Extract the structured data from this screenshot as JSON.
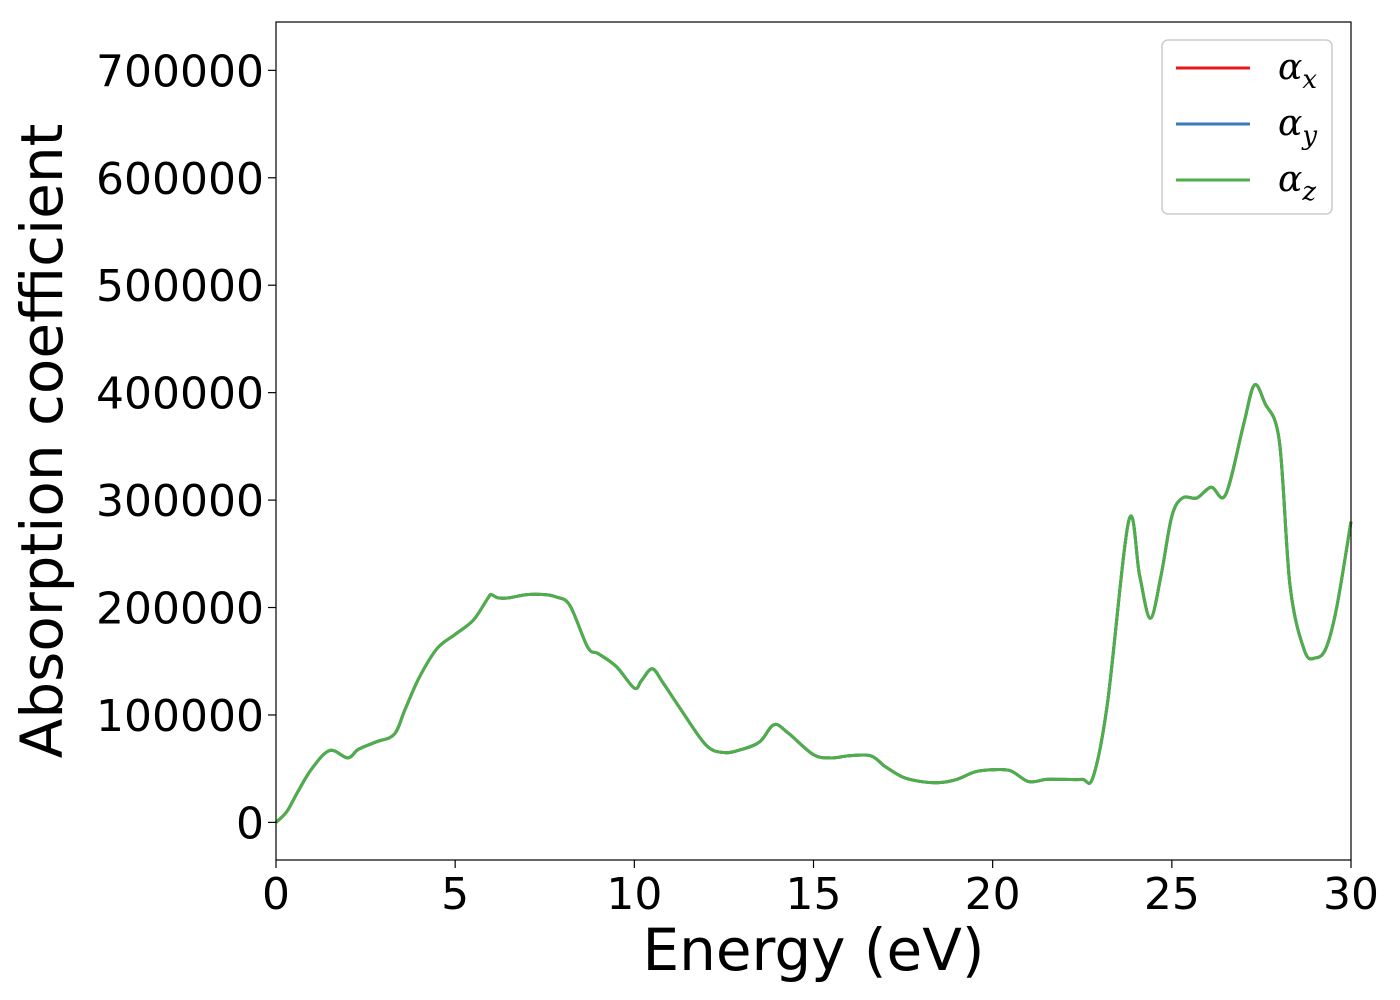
{
  "chart_data": {
    "type": "line",
    "title": "",
    "xlabel": "Energy (eV)",
    "ylabel": "Absorption coefficient",
    "xlim": [
      0,
      30
    ],
    "ylim": [
      -35000,
      745000
    ],
    "xticks": [
      0,
      5,
      10,
      15,
      20,
      25,
      30
    ],
    "yticks": [
      0,
      100000,
      200000,
      300000,
      400000,
      500000,
      600000,
      700000
    ],
    "xtick_labels": [
      "0",
      "5",
      "10",
      "15",
      "20",
      "25",
      "30"
    ],
    "ytick_labels": [
      "0",
      "100000",
      "200000",
      "300000",
      "400000",
      "500000",
      "600000",
      "700000"
    ],
    "grid": false,
    "legend": {
      "placement": "top-right",
      "entries": [
        {
          "symbol": "α",
          "subscript": "x",
          "color": "#e41a1c"
        },
        {
          "symbol": "α",
          "subscript": "y",
          "color": "#377eb8"
        },
        {
          "symbol": "α",
          "subscript": "z",
          "color": "#4daf4a"
        }
      ]
    },
    "x": [
      0,
      0.3,
      0.6,
      1.0,
      1.5,
      2.0,
      2.3,
      2.8,
      3.3,
      3.6,
      4.0,
      4.5,
      5.0,
      5.5,
      5.9,
      6.0,
      6.2,
      6.5,
      7.0,
      7.5,
      7.8,
      8.2,
      8.7,
      9.0,
      9.5,
      10.0,
      10.2,
      10.5,
      10.8,
      11.3,
      12.0,
      12.5,
      13.0,
      13.5,
      13.9,
      14.3,
      15.0,
      15.5,
      16.0,
      16.6,
      17.0,
      17.5,
      18.0,
      18.5,
      19.0,
      19.5,
      20.0,
      20.5,
      21.0,
      21.5,
      22.0,
      22.5,
      22.8,
      23.2,
      23.8,
      24.1,
      24.4,
      24.7,
      25.0,
      25.3,
      25.7,
      26.1,
      26.5,
      27.0,
      27.3,
      27.6,
      28.0,
      28.3,
      28.7,
      29.0,
      29.3,
      29.6,
      30.0
    ],
    "series": [
      {
        "name": "",
        "color": "#e41a1c",
        "values": [
          0,
          10000,
          28000,
          50000,
          67000,
          60000,
          68000,
          75000,
          82000,
          105000,
          135000,
          162000,
          175000,
          188000,
          208000,
          212000,
          209000,
          209000,
          212000,
          212000,
          210000,
          202000,
          163000,
          157000,
          145000,
          125000,
          132000,
          143000,
          130000,
          105000,
          72000,
          65000,
          68000,
          75000,
          91000,
          83000,
          63000,
          60000,
          62000,
          62000,
          52000,
          42000,
          38000,
          37000,
          40000,
          47000,
          49000,
          48000,
          38000,
          40000,
          40000,
          40000,
          42000,
          110000,
          281000,
          230000,
          190000,
          230000,
          285000,
          302000,
          302000,
          312000,
          305000,
          370000,
          407000,
          390000,
          355000,
          220000,
          160000,
          153000,
          162000,
          200000,
          280000
        ]
      },
      {
        "name": "",
        "color": "#377eb8",
        "values": [
          0,
          10000,
          28000,
          50000,
          67000,
          60000,
          68000,
          75000,
          82000,
          105000,
          135000,
          162000,
          175000,
          188000,
          208000,
          212000,
          209000,
          209000,
          212000,
          212000,
          210000,
          202000,
          163000,
          157000,
          145000,
          125000,
          132000,
          143000,
          130000,
          105000,
          72000,
          65000,
          68000,
          75000,
          91000,
          83000,
          63000,
          60000,
          62000,
          62000,
          52000,
          42000,
          38000,
          37000,
          40000,
          47000,
          49000,
          48000,
          38000,
          40000,
          40000,
          40000,
          42000,
          110000,
          281000,
          230000,
          190000,
          230000,
          285000,
          302000,
          302000,
          312000,
          305000,
          370000,
          407000,
          390000,
          355000,
          220000,
          160000,
          153000,
          162000,
          200000,
          280000
        ]
      },
      {
        "name": "",
        "color": "#4daf4a",
        "values": [
          0,
          10000,
          28000,
          50000,
          67000,
          60000,
          68000,
          75000,
          82000,
          105000,
          135000,
          162000,
          175000,
          188000,
          208000,
          212000,
          209000,
          209000,
          212000,
          212000,
          210000,
          202000,
          163000,
          157000,
          145000,
          125000,
          132000,
          143000,
          130000,
          105000,
          72000,
          65000,
          68000,
          75000,
          91000,
          83000,
          63000,
          60000,
          62000,
          62000,
          52000,
          42000,
          38000,
          37000,
          40000,
          47000,
          49000,
          48000,
          38000,
          40000,
          40000,
          40000,
          42000,
          110000,
          281000,
          230000,
          190000,
          230000,
          285000,
          302000,
          302000,
          312000,
          305000,
          370000,
          407000,
          390000,
          355000,
          220000,
          160000,
          153000,
          162000,
          200000,
          280000
        ]
      }
    ]
  }
}
